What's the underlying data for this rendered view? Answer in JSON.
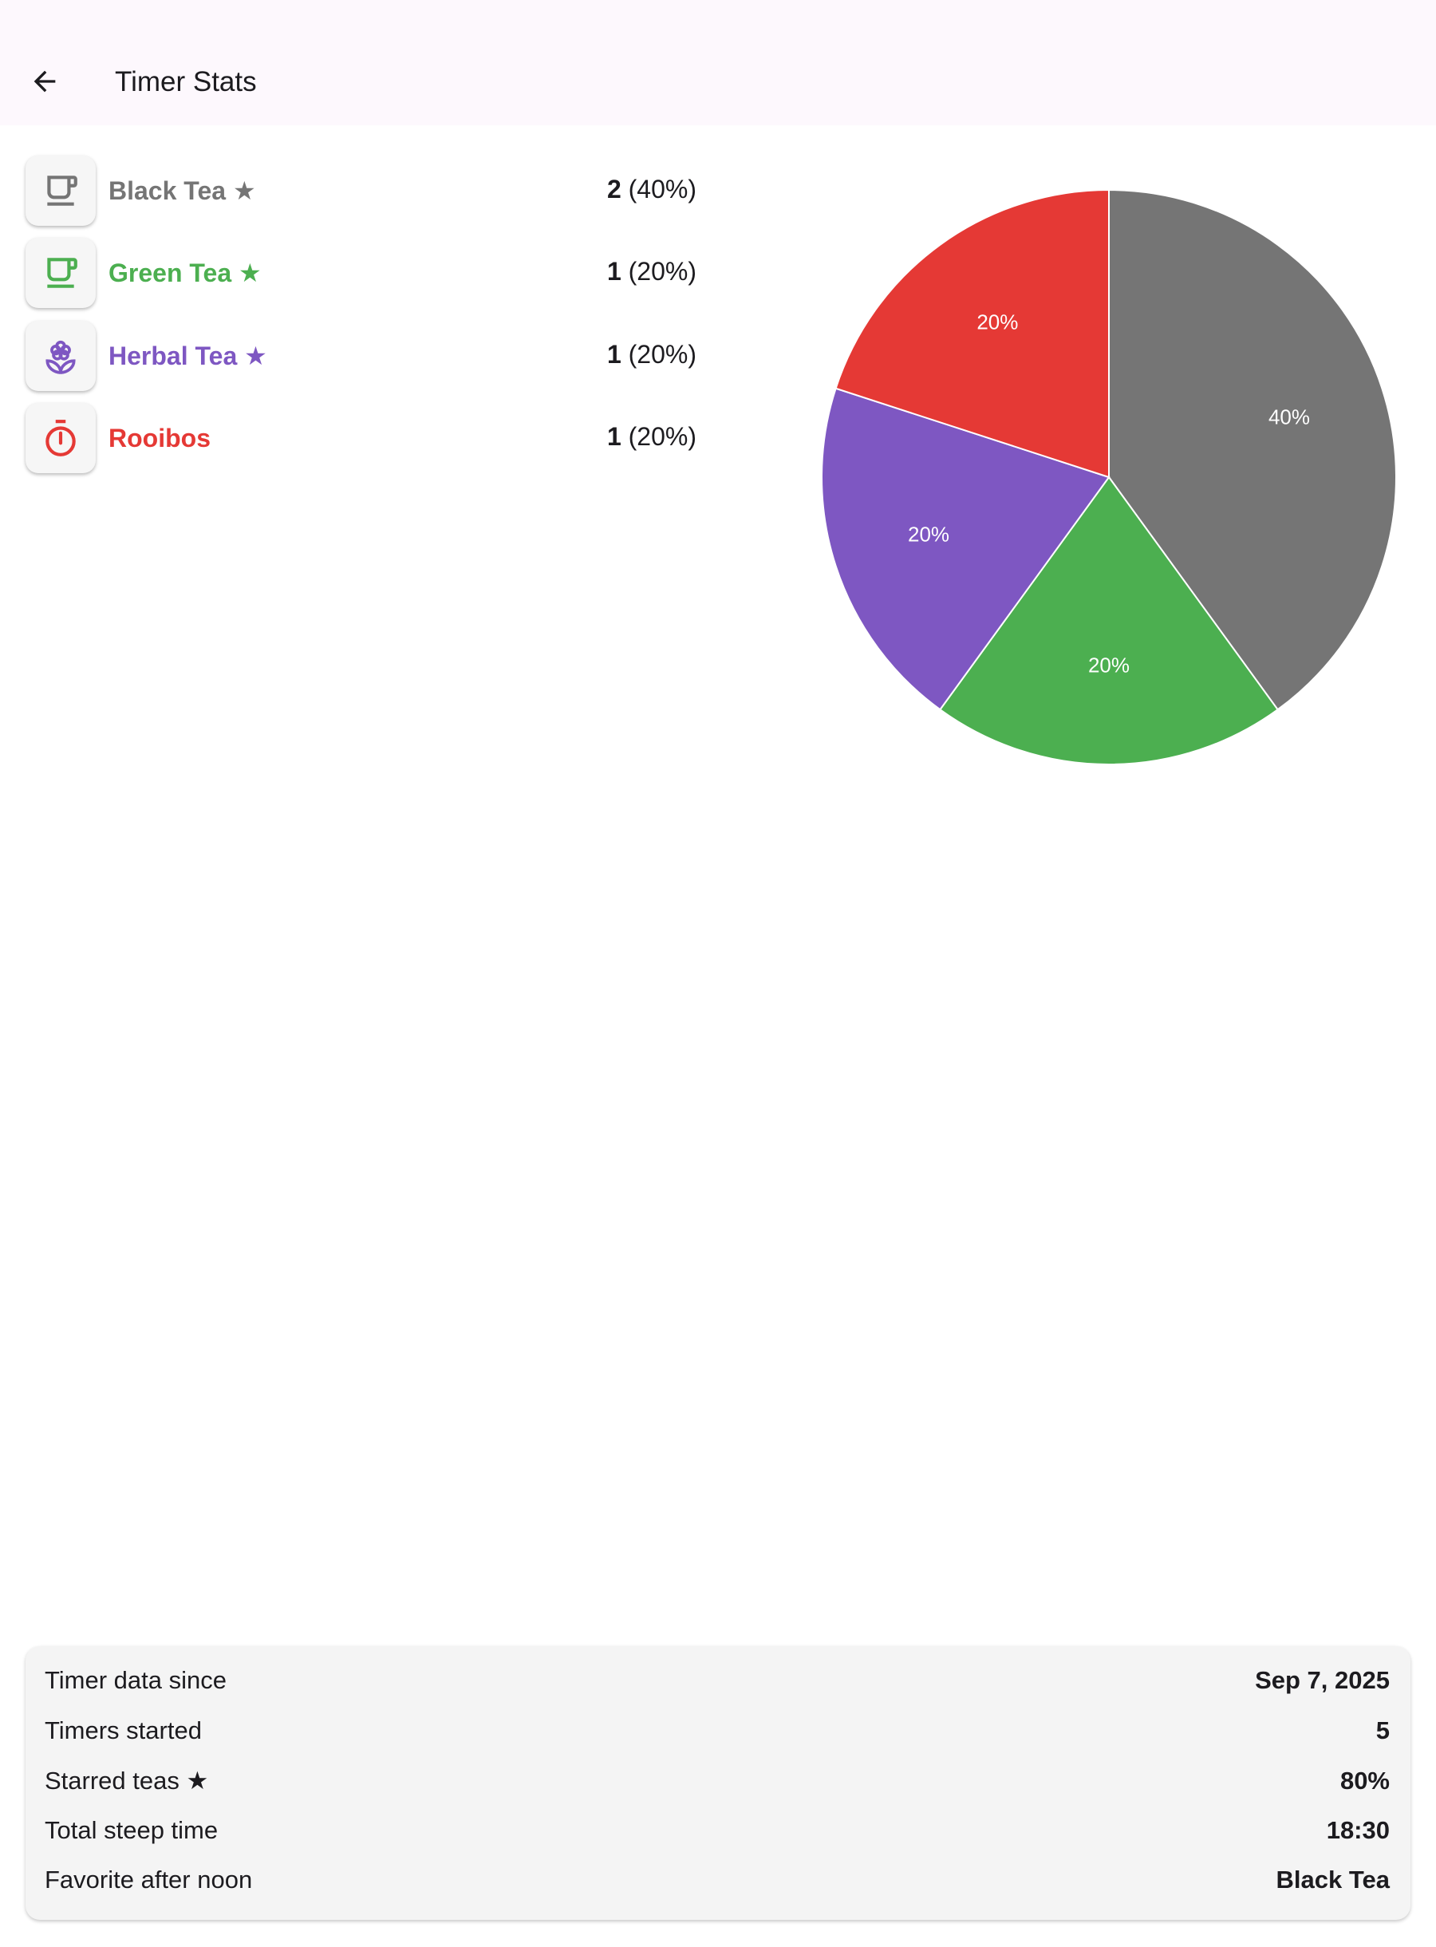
{
  "app_bar": {
    "title": "Timer Stats",
    "back_icon": "arrow-left-icon"
  },
  "teas": [
    {
      "name": "Black Tea ★",
      "count": "2",
      "percent": "(40%)",
      "color": "#757575",
      "icon": "coffee-cup-icon"
    },
    {
      "name": "Green Tea ★",
      "count": "1",
      "percent": "(20%)",
      "color": "#4caf50",
      "icon": "coffee-cup-icon"
    },
    {
      "name": "Herbal Tea ★",
      "count": "1",
      "percent": "(20%)",
      "color": "#7e57c2",
      "icon": "flower-icon"
    },
    {
      "name": "Rooibos",
      "count": "1",
      "percent": "(20%)",
      "color": "#e53935",
      "icon": "timer-icon"
    }
  ],
  "chart_data": {
    "type": "pie",
    "categories": [
      "Black Tea",
      "Green Tea",
      "Herbal Tea",
      "Rooibos"
    ],
    "values": [
      40,
      20,
      20,
      20
    ],
    "labels": [
      "40%",
      "20%",
      "20%",
      "20%"
    ],
    "colors": [
      "#757575",
      "#4caf50",
      "#7e57c2",
      "#e53935"
    ]
  },
  "summary": [
    {
      "label": "Timer data since",
      "value": "Sep 7, 2025"
    },
    {
      "label": "Timers started",
      "value": "5"
    },
    {
      "label": "Starred teas ★",
      "value": "80%"
    },
    {
      "label": "Total steep time",
      "value": "18:30"
    },
    {
      "label": "Favorite after noon",
      "value": "Black Tea"
    }
  ]
}
